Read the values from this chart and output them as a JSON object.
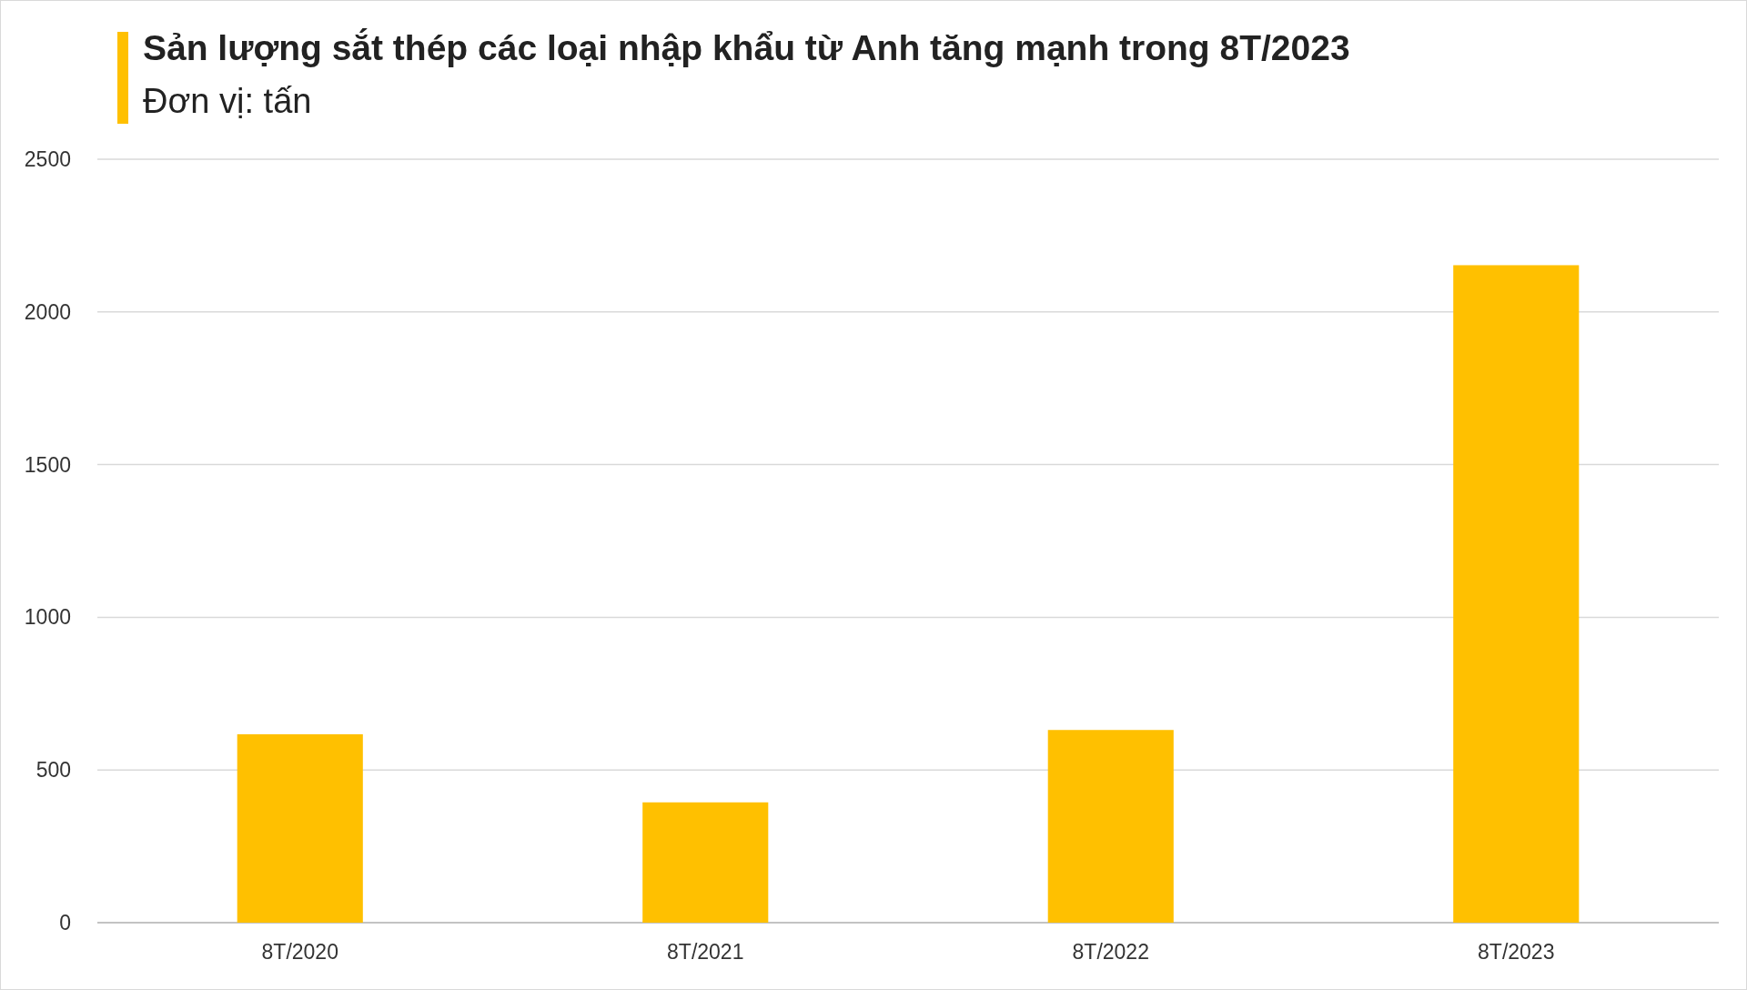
{
  "chart_data": {
    "type": "bar",
    "title": "Sản lượng sắt thép các loại nhập khẩu từ Anh tăng mạnh trong 8T/2023",
    "subtitle": "Đơn vị: tấn",
    "categories": [
      "8T/2020",
      "8T/2021",
      "8T/2022",
      "8T/2023"
    ],
    "values": [
      617,
      394,
      631,
      2153
    ],
    "color": "#ffc000",
    "ylim": [
      0,
      2500
    ],
    "yticks": [
      0,
      500,
      1000,
      1500,
      2000,
      2500
    ],
    "grid": "y"
  }
}
